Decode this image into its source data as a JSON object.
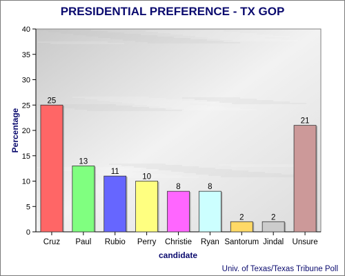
{
  "chart_data": {
    "type": "bar",
    "title": "PRESIDENTIAL PREFERENCE - TX GOP",
    "xlabel": "candidate",
    "ylabel": "Percentage",
    "categories": [
      "Cruz",
      "Paul",
      "Rubio",
      "Perry",
      "Christie",
      "Ryan",
      "Santorum",
      "Jindal",
      "Unsure"
    ],
    "values": [
      25,
      13,
      11,
      10,
      8,
      8,
      2,
      2,
      21
    ],
    "value_labels": [
      "25",
      "13",
      "11",
      "10",
      "8",
      "8",
      "2",
      "2",
      "21"
    ],
    "colors": [
      "#ff6666",
      "#80ff80",
      "#6666ff",
      "#ffff80",
      "#ff66ff",
      "#ccffff",
      "#ffd966",
      "#cccccc",
      "#cc9999"
    ],
    "ylim": [
      0,
      40
    ],
    "yticks": [
      "0",
      "5",
      "10",
      "15",
      "20",
      "25",
      "30",
      "35",
      "40"
    ],
    "grid": false,
    "legend": "none"
  },
  "source": "Univ. of Texas/Texas Tribune Poll"
}
